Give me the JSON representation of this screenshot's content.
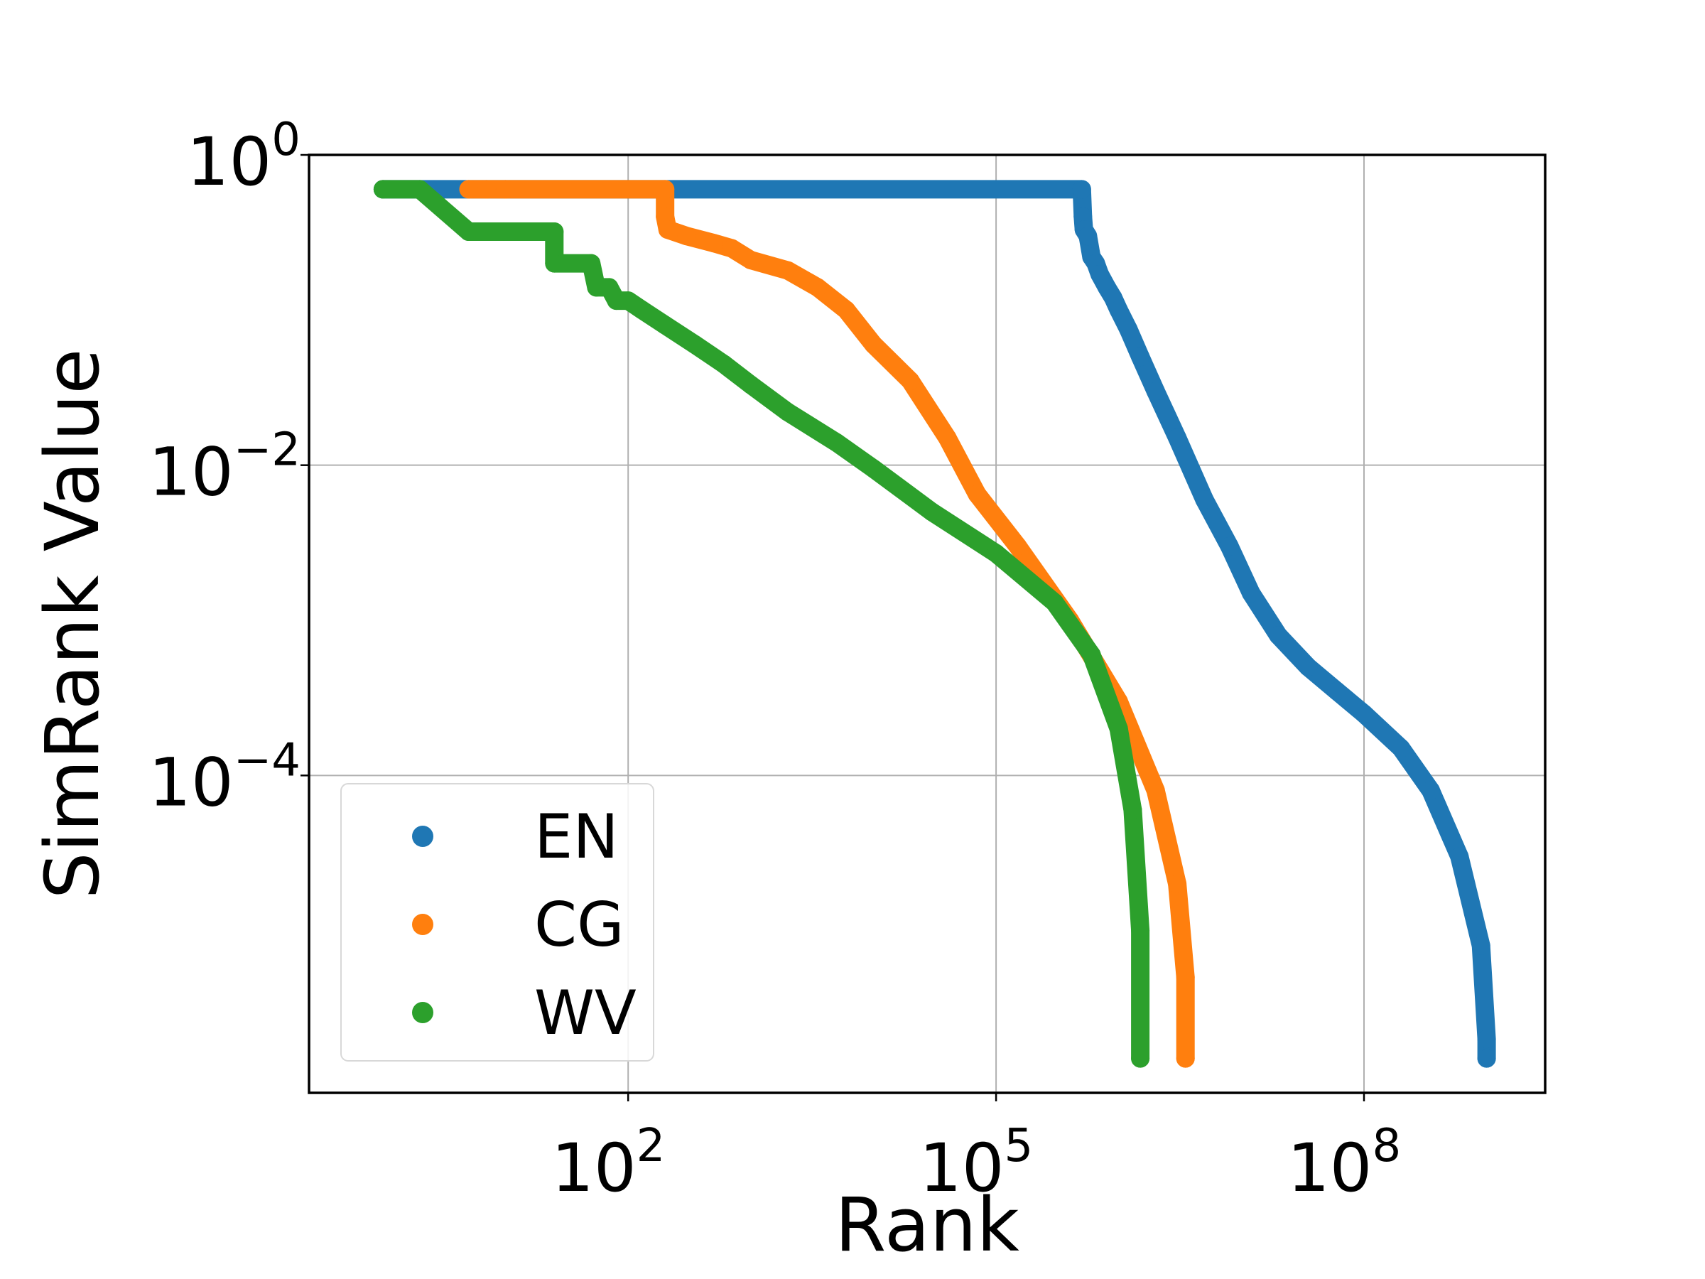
{
  "chart_data": {
    "type": "scatter",
    "xlabel": "Rank",
    "ylabel": "SimRank Value",
    "x_scale": "log",
    "y_scale": "log",
    "xlim": [
      0.25,
      3000000000
    ],
    "ylim": [
      9e-07,
      1.0
    ],
    "grid": true,
    "legend_position": "lower-left",
    "x_ticks": [
      {
        "value": 100,
        "base": "10",
        "exp": "2"
      },
      {
        "value": 100000,
        "base": "10",
        "exp": "5"
      },
      {
        "value": 100000000,
        "base": "10",
        "exp": "8"
      }
    ],
    "y_ticks": [
      {
        "value": 1,
        "base": "10",
        "exp": "0"
      },
      {
        "value": 0.01,
        "base": "10",
        "exp": "−2"
      },
      {
        "value": 0.0001,
        "base": "10",
        "exp": "−4"
      }
    ],
    "series": [
      {
        "name": "EN",
        "color": "#1f77b4",
        "points": [
          [
            1,
            0.6
          ],
          [
            500000,
            0.6
          ],
          [
            510000,
            0.4
          ],
          [
            520000,
            0.33
          ],
          [
            560000,
            0.3
          ],
          [
            600000,
            0.22
          ],
          [
            650000,
            0.2
          ],
          [
            700000,
            0.17
          ],
          [
            800000,
            0.14
          ],
          [
            900000,
            0.12
          ],
          [
            1000000,
            0.1
          ],
          [
            1200000,
            0.075
          ],
          [
            1500000,
            0.05
          ],
          [
            2000000,
            0.03
          ],
          [
            3000000,
            0.015
          ],
          [
            5000000,
            0.006
          ],
          [
            8000000,
            0.003
          ],
          [
            12000000,
            0.0015
          ],
          [
            20000000,
            0.0008
          ],
          [
            35000000,
            0.0005
          ],
          [
            60000000,
            0.00035
          ],
          [
            100000000,
            0.00025
          ],
          [
            200000000,
            0.00015
          ],
          [
            350000000,
            8e-05
          ],
          [
            600000000,
            3e-05
          ],
          [
            900000000,
            8e-06
          ],
          [
            1000000000,
            2e-06
          ],
          [
            1000000000,
            1.5e-06
          ]
        ]
      },
      {
        "name": "CG",
        "color": "#ff7f0e",
        "points": [
          [
            5,
            0.6
          ],
          [
            7,
            0.6
          ],
          [
            10,
            0.6
          ],
          [
            200,
            0.6
          ],
          [
            200,
            0.4
          ],
          [
            210,
            0.33
          ],
          [
            300,
            0.3
          ],
          [
            500,
            0.27
          ],
          [
            700,
            0.25
          ],
          [
            1000,
            0.21
          ],
          [
            2000,
            0.18
          ],
          [
            3500,
            0.14
          ],
          [
            6000,
            0.1
          ],
          [
            10000,
            0.06
          ],
          [
            20000,
            0.035
          ],
          [
            40000,
            0.015
          ],
          [
            70000,
            0.0065
          ],
          [
            150000,
            0.003
          ],
          [
            400000,
            0.001
          ],
          [
            1000000,
            0.0003
          ],
          [
            2000000,
            8e-05
          ],
          [
            3000000,
            2e-05
          ],
          [
            3500000,
            5e-06
          ],
          [
            3500000,
            1.5e-06
          ]
        ]
      },
      {
        "name": "WV",
        "color": "#2ca02c",
        "points": [
          [
            1,
            0.6
          ],
          [
            2,
            0.6
          ],
          [
            5,
            0.32
          ],
          [
            10,
            0.32
          ],
          [
            25,
            0.32
          ],
          [
            25,
            0.2
          ],
          [
            50,
            0.2
          ],
          [
            55,
            0.14
          ],
          [
            70,
            0.14
          ],
          [
            80,
            0.115
          ],
          [
            100,
            0.115
          ],
          [
            130,
            0.1
          ],
          [
            200,
            0.08
          ],
          [
            350,
            0.06
          ],
          [
            600,
            0.045
          ],
          [
            1000,
            0.033
          ],
          [
            2000,
            0.022
          ],
          [
            5000,
            0.014
          ],
          [
            10000,
            0.0095
          ],
          [
            30000,
            0.005
          ],
          [
            100000,
            0.0027
          ],
          [
            300000,
            0.0013
          ],
          [
            600000,
            0.0006
          ],
          [
            1000000,
            0.0002
          ],
          [
            1300000,
            6e-05
          ],
          [
            1500000,
            1e-05
          ],
          [
            1500000,
            1.5e-06
          ]
        ]
      }
    ]
  }
}
